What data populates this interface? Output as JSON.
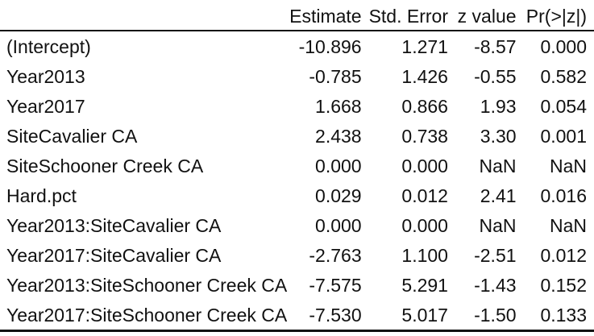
{
  "table": {
    "headers": [
      "",
      "Estimate",
      "Std. Error",
      "z value",
      "Pr(>|z|)"
    ],
    "rows": [
      [
        "(Intercept)",
        "-10.896",
        "1.271",
        "-8.57",
        "0.000"
      ],
      [
        "Year2013",
        "-0.785",
        "1.426",
        "-0.55",
        "0.582"
      ],
      [
        "Year2017",
        "1.668",
        "0.866",
        "1.93",
        "0.054"
      ],
      [
        "SiteCavalier CA",
        "2.438",
        "0.738",
        "3.30",
        "0.001"
      ],
      [
        "SiteSchooner Creek CA",
        "0.000",
        "0.000",
        "NaN",
        "NaN"
      ],
      [
        "Hard.pct",
        "0.029",
        "0.012",
        "2.41",
        "0.016"
      ],
      [
        "Year2013:SiteCavalier CA",
        "0.000",
        "0.000",
        "NaN",
        "NaN"
      ],
      [
        "Year2017:SiteCavalier CA",
        "-2.763",
        "1.100",
        "-2.51",
        "0.012"
      ],
      [
        "Year2013:SiteSchooner Creek CA",
        "-7.575",
        "5.291",
        "-1.43",
        "0.152"
      ],
      [
        "Year2017:SiteSchooner Creek CA",
        "-7.530",
        "5.017",
        "-1.50",
        "0.133"
      ]
    ]
  }
}
